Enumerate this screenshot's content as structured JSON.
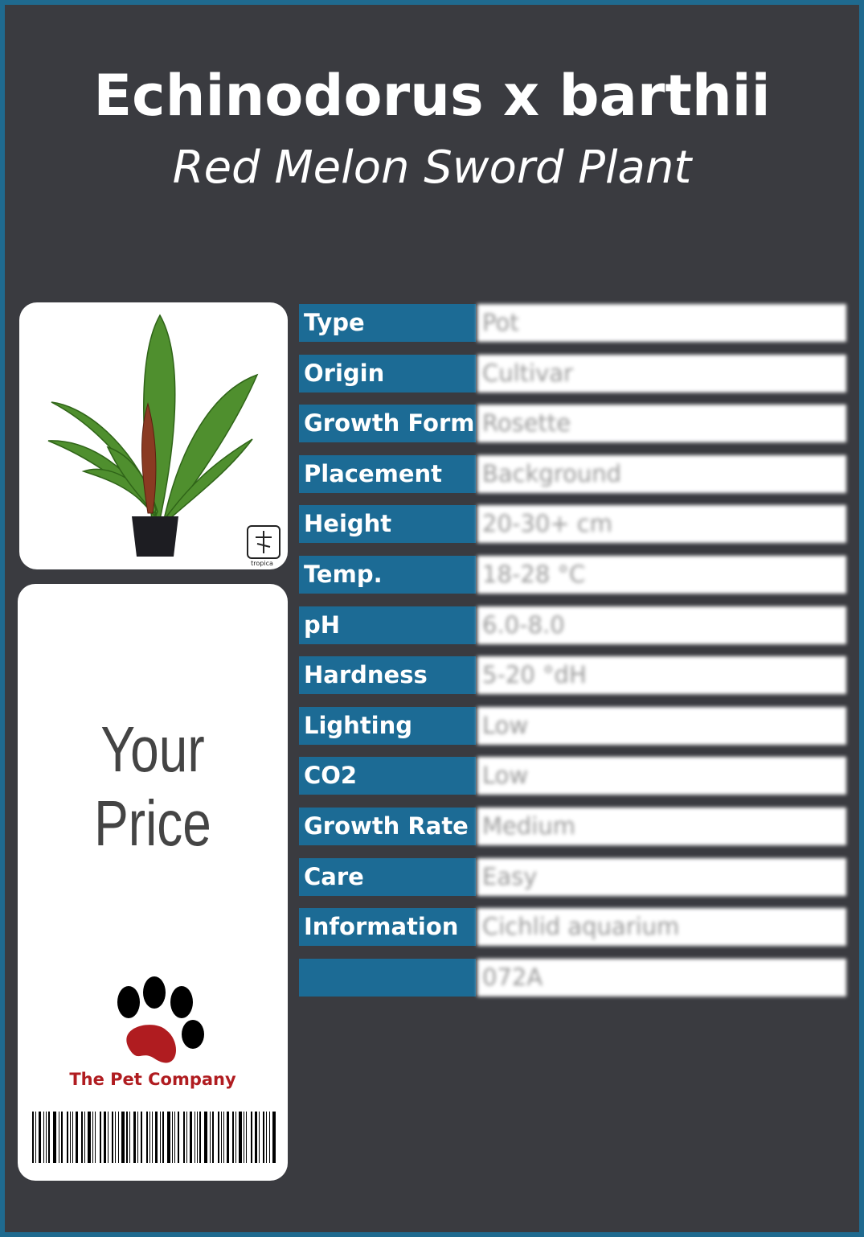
{
  "header": {
    "title": "Echinodorus x barthii",
    "subtitle": "Red Melon Sword Plant"
  },
  "price_label": "Your Price",
  "brand": {
    "logo_text": "tropica",
    "company": "The Pet Company"
  },
  "table": {
    "rows": [
      {
        "label": "Type",
        "value": "Pot"
      },
      {
        "label": "Origin",
        "value": "Cultivar"
      },
      {
        "label": "Growth Form",
        "value": "Rosette"
      },
      {
        "label": "Placement",
        "value": "Background"
      },
      {
        "label": "Height",
        "value": "20-30+ cm"
      },
      {
        "label": "Temp.",
        "value": "18-28 °C"
      },
      {
        "label": "pH",
        "value": "6.0-8.0"
      },
      {
        "label": "Hardness",
        "value": "5-20 °dH"
      },
      {
        "label": "Lighting",
        "value": "Low"
      },
      {
        "label": "CO2",
        "value": "Low"
      },
      {
        "label": "Growth Rate",
        "value": "Medium"
      },
      {
        "label": "Care",
        "value": "Easy"
      },
      {
        "label": "Information",
        "value": "Cichlid aquarium"
      },
      {
        "value": "072A"
      }
    ]
  }
}
